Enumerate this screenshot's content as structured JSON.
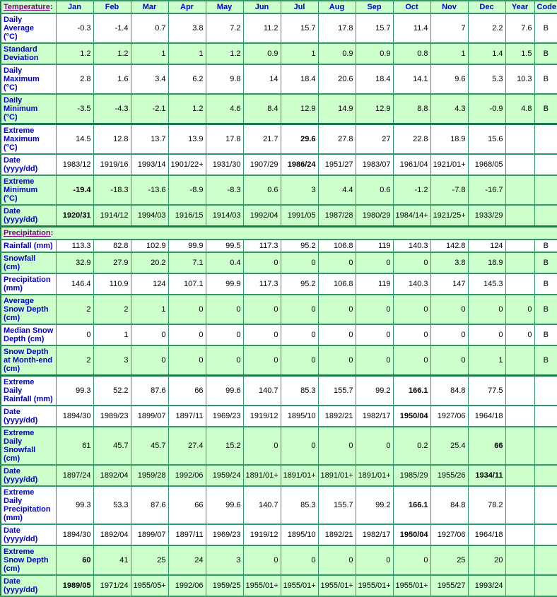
{
  "theme": {
    "cell_green": "#ccffcc",
    "cell_white": "#ffffff",
    "grid_line_color": "#2e9966",
    "section_line_color": "#1d7a4d",
    "row_label_text": "#0000cc",
    "section_title_text": "#800080",
    "data_text": "#000000"
  },
  "table": {
    "month_columns": [
      "Jan",
      "Feb",
      "Mar",
      "Apr",
      "May",
      "Jun",
      "Jul",
      "Aug",
      "Sep",
      "Oct",
      "Nov",
      "Dec"
    ],
    "extra_columns": [
      "Year",
      "Code"
    ],
    "sections": [
      {
        "title": "Temperature",
        "colon": ":",
        "rows": [
          {
            "label": "Daily Average\n(°C)",
            "shade": "white",
            "values": [
              "-0.3",
              "-1.4",
              "0.7",
              "3.8",
              "7.2",
              "11.2",
              "15.7",
              "17.8",
              "15.7",
              "11.4",
              "7",
              "2.2"
            ],
            "year": "7.6",
            "code": "B",
            "bold": []
          },
          {
            "label": "Standard\nDeviation",
            "shade": "green",
            "values": [
              "1.2",
              "1.2",
              "1",
              "1",
              "1.2",
              "0.9",
              "1",
              "0.9",
              "0.9",
              "0.8",
              "1",
              "1.4"
            ],
            "year": "1.5",
            "code": "B",
            "bold": []
          },
          {
            "label": "Daily\nMaximum\n(°C)",
            "shade": "white",
            "values": [
              "2.8",
              "1.6",
              "3.4",
              "6.2",
              "9.8",
              "14",
              "18.4",
              "20.6",
              "18.4",
              "14.1",
              "9.6",
              "5.3"
            ],
            "year": "10.3",
            "code": "B",
            "bold": []
          },
          {
            "label": "Daily\nMinimum\n(°C)",
            "shade": "green",
            "values": [
              "-3.5",
              "-4.3",
              "-2.1",
              "1.2",
              "4.6",
              "8.4",
              "12.9",
              "14.9",
              "12.9",
              "8.8",
              "4.3",
              "-0.9"
            ],
            "year": "4.8",
            "code": "B",
            "bold": []
          },
          {
            "label": "Extreme\nMaximum\n(°C)",
            "shade": "white",
            "thick_top": true,
            "values": [
              "14.5",
              "12.8",
              "13.7",
              "13.9",
              "17.8",
              "21.7",
              "29.6",
              "27.8",
              "27",
              "22.8",
              "18.9",
              "15.6"
            ],
            "year": "",
            "code": "",
            "bold": [
              6
            ]
          },
          {
            "label": "Date\n(yyyy/dd)",
            "shade": "white",
            "values": [
              "1983/12",
              "1919/16",
              "1993/14",
              "1901/22+",
              "1931/30",
              "1907/29",
              "1986/24",
              "1951/27",
              "1983/07",
              "1961/04",
              "1921/01+",
              "1968/05"
            ],
            "year": "",
            "code": "",
            "bold": [
              6
            ]
          },
          {
            "label": "Extreme\nMinimum\n(°C)",
            "shade": "green",
            "values": [
              "-19.4",
              "-18.3",
              "-13.6",
              "-8.9",
              "-8.3",
              "0.6",
              "3",
              "4.4",
              "0.6",
              "-1.2",
              "-7.8",
              "-16.7"
            ],
            "year": "",
            "code": "",
            "bold": [
              0
            ]
          },
          {
            "label": "Date\n(yyyy/dd)",
            "shade": "green",
            "values": [
              "1920/31",
              "1914/12",
              "1994/03",
              "1916/15",
              "1914/03",
              "1992/04",
              "1991/05",
              "1987/28",
              "1980/29",
              "1984/14+",
              "1921/25+",
              "1933/29"
            ],
            "year": "",
            "code": "",
            "bold": [
              0
            ]
          }
        ]
      },
      {
        "title": "Precipitation",
        "colon": ":",
        "rows": [
          {
            "label": "Rainfall (mm)",
            "shade": "white",
            "values": [
              "113.3",
              "82.8",
              "102.9",
              "99.9",
              "99.5",
              "117.3",
              "95.2",
              "106.8",
              "119",
              "140.3",
              "142.8",
              "124"
            ],
            "year": "",
            "code": "B",
            "bold": []
          },
          {
            "label": "Snowfall\n(cm)",
            "shade": "green",
            "values": [
              "32.9",
              "27.9",
              "20.2",
              "7.1",
              "0.4",
              "0",
              "0",
              "0",
              "0",
              "0",
              "3.8",
              "18.9"
            ],
            "year": "",
            "code": "B",
            "bold": []
          },
          {
            "label": "Precipitation\n(mm)",
            "shade": "white",
            "values": [
              "146.4",
              "110.9",
              "124",
              "107.1",
              "99.9",
              "117.3",
              "95.2",
              "106.8",
              "119",
              "140.3",
              "147",
              "145.3"
            ],
            "year": "",
            "code": "B",
            "bold": []
          },
          {
            "label": "Average\nSnow Depth\n(cm)",
            "shade": "green",
            "values": [
              "2",
              "2",
              "1",
              "0",
              "0",
              "0",
              "0",
              "0",
              "0",
              "0",
              "0",
              "0"
            ],
            "year": "0",
            "code": "B",
            "bold": []
          },
          {
            "label": "Median Snow\nDepth (cm)",
            "shade": "white",
            "values": [
              "0",
              "1",
              "0",
              "0",
              "0",
              "0",
              "0",
              "0",
              "0",
              "0",
              "0",
              "0"
            ],
            "year": "0",
            "code": "B",
            "bold": []
          },
          {
            "label": "Snow Depth\nat Month-end\n(cm)",
            "shade": "green",
            "values": [
              "2",
              "3",
              "0",
              "0",
              "0",
              "0",
              "0",
              "0",
              "0",
              "0",
              "0",
              "1"
            ],
            "year": "",
            "code": "B",
            "bold": []
          },
          {
            "label": "Extreme Daily\nRainfall (mm)",
            "shade": "white",
            "thick_top": true,
            "values": [
              "99.3",
              "52.2",
              "87.6",
              "66",
              "99.6",
              "140.7",
              "85.3",
              "155.7",
              "99.2",
              "166.1",
              "84.8",
              "77.5"
            ],
            "year": "",
            "code": "",
            "bold": [
              9
            ]
          },
          {
            "label": "Date\n(yyyy/dd)",
            "shade": "white",
            "values": [
              "1894/30",
              "1989/23",
              "1899/07",
              "1897/11",
              "1969/23",
              "1919/12",
              "1895/10",
              "1892/21",
              "1982/17",
              "1950/04",
              "1927/06",
              "1964/18"
            ],
            "year": "",
            "code": "",
            "bold": [
              9
            ]
          },
          {
            "label": "Extreme Daily\nSnowfall\n(cm)",
            "shade": "green",
            "values": [
              "61",
              "45.7",
              "45.7",
              "27.4",
              "15.2",
              "0",
              "0",
              "0",
              "0",
              "0.2",
              "25.4",
              "66"
            ],
            "year": "",
            "code": "",
            "bold": [
              11
            ]
          },
          {
            "label": "Date\n(yyyy/dd)",
            "shade": "green",
            "values": [
              "1897/24",
              "1892/04",
              "1959/28",
              "1992/06",
              "1959/24",
              "1891/01+",
              "1891/01+",
              "1891/01+",
              "1891/01+",
              "1985/29",
              "1955/26",
              "1934/11"
            ],
            "year": "",
            "code": "",
            "bold": [
              11
            ]
          },
          {
            "label": "Extreme Daily\nPrecipitation\n(mm)",
            "shade": "white",
            "values": [
              "99.3",
              "53.3",
              "87.6",
              "66",
              "99.6",
              "140.7",
              "85.3",
              "155.7",
              "99.2",
              "166.1",
              "84.8",
              "78.2"
            ],
            "year": "",
            "code": "",
            "bold": [
              9
            ]
          },
          {
            "label": "Date\n(yyyy/dd)",
            "shade": "white",
            "values": [
              "1894/30",
              "1892/04",
              "1899/07",
              "1897/11",
              "1969/23",
              "1919/12",
              "1895/10",
              "1892/21",
              "1982/17",
              "1950/04",
              "1927/06",
              "1964/18"
            ],
            "year": "",
            "code": "",
            "bold": [
              9
            ]
          },
          {
            "label": "Extreme\nSnow Depth\n(cm)",
            "shade": "green",
            "values": [
              "60",
              "41",
              "25",
              "24",
              "3",
              "0",
              "0",
              "0",
              "0",
              "0",
              "25",
              "20"
            ],
            "year": "",
            "code": "",
            "bold": [
              0
            ]
          },
          {
            "label": "Date\n(yyyy/dd)",
            "shade": "green",
            "values": [
              "1989/05",
              "1971/24",
              "1955/05+",
              "1992/06",
              "1959/25",
              "1955/01+",
              "1955/01+",
              "1955/01+",
              "1955/01+",
              "1955/01+",
              "1955/27",
              "1993/24"
            ],
            "year": "",
            "code": "",
            "bold": [
              0
            ]
          }
        ]
      }
    ]
  }
}
